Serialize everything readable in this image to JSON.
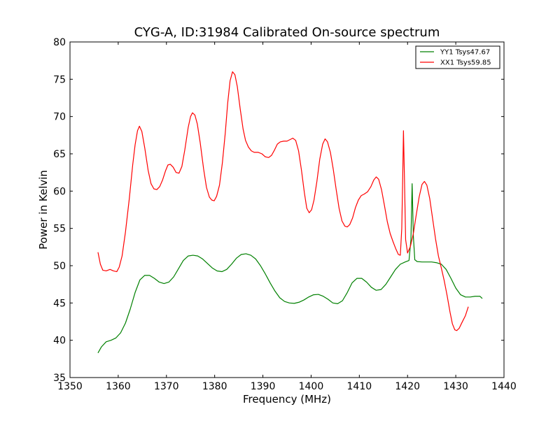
{
  "chart_data": {
    "type": "line",
    "title": "CYG-A, ID:31984 Calibrated On-source spectrum",
    "xlabel": "Frequency (MHz)",
    "ylabel": "Power in Kelvin",
    "xlim": [
      1350,
      1440
    ],
    "ylim": [
      35,
      80
    ],
    "x_ticks": [
      1350,
      1360,
      1370,
      1380,
      1390,
      1400,
      1410,
      1420,
      1430,
      1440
    ],
    "y_ticks": [
      35,
      40,
      45,
      50,
      55,
      60,
      65,
      70,
      75,
      80
    ],
    "grid": false,
    "legend": "top-right",
    "series": [
      {
        "name": "YY1 Tsys47.67",
        "color": "#008000",
        "points": [
          [
            1355.8,
            38.3
          ],
          [
            1356.5,
            39.1
          ],
          [
            1357.5,
            39.8
          ],
          [
            1358.5,
            40.0
          ],
          [
            1359.5,
            40.3
          ],
          [
            1360.5,
            41.0
          ],
          [
            1361.5,
            42.3
          ],
          [
            1362.5,
            44.2
          ],
          [
            1363.5,
            46.4
          ],
          [
            1364.5,
            48.1
          ],
          [
            1365.5,
            48.7
          ],
          [
            1366.5,
            48.7
          ],
          [
            1367.5,
            48.3
          ],
          [
            1368.5,
            47.8
          ],
          [
            1369.5,
            47.6
          ],
          [
            1370.5,
            47.8
          ],
          [
            1371.5,
            48.5
          ],
          [
            1372.5,
            49.6
          ],
          [
            1373.5,
            50.7
          ],
          [
            1374.5,
            51.3
          ],
          [
            1375.5,
            51.4
          ],
          [
            1376.5,
            51.3
          ],
          [
            1377.5,
            50.9
          ],
          [
            1378.5,
            50.3
          ],
          [
            1379.5,
            49.7
          ],
          [
            1380.5,
            49.3
          ],
          [
            1381.5,
            49.2
          ],
          [
            1382.5,
            49.5
          ],
          [
            1383.5,
            50.2
          ],
          [
            1384.5,
            51.0
          ],
          [
            1385.5,
            51.5
          ],
          [
            1386.5,
            51.6
          ],
          [
            1387.5,
            51.4
          ],
          [
            1388.5,
            50.9
          ],
          [
            1389.5,
            50.0
          ],
          [
            1390.5,
            48.9
          ],
          [
            1391.5,
            47.7
          ],
          [
            1392.5,
            46.6
          ],
          [
            1393.5,
            45.7
          ],
          [
            1394.5,
            45.2
          ],
          [
            1395.5,
            45.0
          ],
          [
            1396.5,
            44.95
          ],
          [
            1397.5,
            45.1
          ],
          [
            1398.5,
            45.4
          ],
          [
            1399.5,
            45.8
          ],
          [
            1400.5,
            46.1
          ],
          [
            1401.5,
            46.15
          ],
          [
            1402.5,
            45.9
          ],
          [
            1403.5,
            45.5
          ],
          [
            1404.5,
            45.0
          ],
          [
            1405.5,
            44.9
          ],
          [
            1406.5,
            45.3
          ],
          [
            1407.5,
            46.4
          ],
          [
            1408.5,
            47.7
          ],
          [
            1409.5,
            48.3
          ],
          [
            1410.5,
            48.3
          ],
          [
            1411.5,
            47.8
          ],
          [
            1412.5,
            47.1
          ],
          [
            1413.5,
            46.7
          ],
          [
            1414.5,
            46.8
          ],
          [
            1415.5,
            47.5
          ],
          [
            1416.5,
            48.5
          ],
          [
            1417.5,
            49.5
          ],
          [
            1418.5,
            50.2
          ],
          [
            1419.5,
            50.5
          ],
          [
            1420.3,
            50.7
          ],
          [
            1420.7,
            53.5
          ],
          [
            1420.95,
            61.0
          ],
          [
            1421.2,
            54.0
          ],
          [
            1421.5,
            50.8
          ],
          [
            1422.0,
            50.55
          ],
          [
            1423.0,
            50.5
          ],
          [
            1424.0,
            50.5
          ],
          [
            1425.0,
            50.5
          ],
          [
            1426.0,
            50.4
          ],
          [
            1427.0,
            50.2
          ],
          [
            1428.0,
            49.5
          ],
          [
            1429.0,
            48.3
          ],
          [
            1430.0,
            47.0
          ],
          [
            1431.0,
            46.1
          ],
          [
            1432.0,
            45.8
          ],
          [
            1433.0,
            45.8
          ],
          [
            1434.0,
            45.9
          ],
          [
            1435.0,
            45.9
          ],
          [
            1435.5,
            45.6
          ]
        ]
      },
      {
        "name": "XX1 Tsys59.85",
        "color": "#ff0000",
        "points": [
          [
            1355.8,
            51.8
          ],
          [
            1356.3,
            50.2
          ],
          [
            1356.8,
            49.4
          ],
          [
            1357.5,
            49.3
          ],
          [
            1358.3,
            49.5
          ],
          [
            1359.0,
            49.3
          ],
          [
            1359.7,
            49.2
          ],
          [
            1360.2,
            49.8
          ],
          [
            1360.8,
            51.3
          ],
          [
            1361.5,
            54.5
          ],
          [
            1362.3,
            59.0
          ],
          [
            1363.0,
            63.5
          ],
          [
            1363.5,
            66.2
          ],
          [
            1364.0,
            68.1
          ],
          [
            1364.4,
            68.7
          ],
          [
            1364.9,
            68.0
          ],
          [
            1365.5,
            65.8
          ],
          [
            1366.2,
            62.8
          ],
          [
            1366.8,
            61.0
          ],
          [
            1367.4,
            60.3
          ],
          [
            1368.0,
            60.2
          ],
          [
            1368.6,
            60.6
          ],
          [
            1369.2,
            61.5
          ],
          [
            1369.8,
            62.7
          ],
          [
            1370.3,
            63.5
          ],
          [
            1370.8,
            63.6
          ],
          [
            1371.4,
            63.2
          ],
          [
            1372.0,
            62.5
          ],
          [
            1372.6,
            62.4
          ],
          [
            1373.2,
            63.3
          ],
          [
            1373.8,
            65.5
          ],
          [
            1374.5,
            68.5
          ],
          [
            1375.0,
            70.0
          ],
          [
            1375.4,
            70.5
          ],
          [
            1375.9,
            70.2
          ],
          [
            1376.4,
            69.0
          ],
          [
            1377.0,
            66.5
          ],
          [
            1377.7,
            63.0
          ],
          [
            1378.3,
            60.5
          ],
          [
            1378.9,
            59.2
          ],
          [
            1379.4,
            58.8
          ],
          [
            1379.9,
            58.7
          ],
          [
            1380.4,
            59.3
          ],
          [
            1381.0,
            60.8
          ],
          [
            1381.6,
            63.8
          ],
          [
            1382.2,
            67.8
          ],
          [
            1382.7,
            71.8
          ],
          [
            1383.2,
            74.8
          ],
          [
            1383.7,
            76.0
          ],
          [
            1384.2,
            75.6
          ],
          [
            1384.7,
            74.0
          ],
          [
            1385.3,
            71.0
          ],
          [
            1385.9,
            68.3
          ],
          [
            1386.4,
            66.8
          ],
          [
            1387.0,
            65.9
          ],
          [
            1387.6,
            65.4
          ],
          [
            1388.2,
            65.2
          ],
          [
            1389.0,
            65.2
          ],
          [
            1389.8,
            65.0
          ],
          [
            1390.5,
            64.6
          ],
          [
            1391.2,
            64.5
          ],
          [
            1391.8,
            64.8
          ],
          [
            1392.4,
            65.5
          ],
          [
            1393.0,
            66.3
          ],
          [
            1393.6,
            66.6
          ],
          [
            1394.3,
            66.7
          ],
          [
            1395.0,
            66.7
          ],
          [
            1395.6,
            66.9
          ],
          [
            1396.2,
            67.1
          ],
          [
            1396.8,
            66.8
          ],
          [
            1397.4,
            65.4
          ],
          [
            1398.0,
            62.8
          ],
          [
            1398.6,
            59.8
          ],
          [
            1399.1,
            57.7
          ],
          [
            1399.6,
            57.1
          ],
          [
            1400.1,
            57.5
          ],
          [
            1400.6,
            58.8
          ],
          [
            1401.2,
            61.3
          ],
          [
            1401.8,
            64.3
          ],
          [
            1402.4,
            66.3
          ],
          [
            1402.9,
            67.0
          ],
          [
            1403.4,
            66.6
          ],
          [
            1404.0,
            65.2
          ],
          [
            1404.6,
            62.9
          ],
          [
            1405.2,
            60.2
          ],
          [
            1405.8,
            57.7
          ],
          [
            1406.4,
            56.0
          ],
          [
            1407.0,
            55.3
          ],
          [
            1407.5,
            55.2
          ],
          [
            1408.0,
            55.5
          ],
          [
            1408.6,
            56.4
          ],
          [
            1409.2,
            57.8
          ],
          [
            1409.8,
            58.8
          ],
          [
            1410.4,
            59.4
          ],
          [
            1411.0,
            59.6
          ],
          [
            1411.7,
            59.9
          ],
          [
            1412.4,
            60.6
          ],
          [
            1413.0,
            61.5
          ],
          [
            1413.5,
            61.9
          ],
          [
            1414.0,
            61.6
          ],
          [
            1414.6,
            60.2
          ],
          [
            1415.2,
            58.1
          ],
          [
            1415.8,
            55.9
          ],
          [
            1416.4,
            54.3
          ],
          [
            1417.0,
            53.2
          ],
          [
            1417.6,
            52.2
          ],
          [
            1418.1,
            51.5
          ],
          [
            1418.5,
            51.4
          ],
          [
            1418.8,
            55.0
          ],
          [
            1419.0,
            62.0
          ],
          [
            1419.15,
            68.1
          ],
          [
            1419.35,
            62.0
          ],
          [
            1419.6,
            53.5
          ],
          [
            1420.0,
            51.7
          ],
          [
            1420.6,
            52.6
          ],
          [
            1421.2,
            54.3
          ],
          [
            1421.8,
            56.8
          ],
          [
            1422.4,
            59.2
          ],
          [
            1423.0,
            60.9
          ],
          [
            1423.5,
            61.3
          ],
          [
            1424.0,
            60.8
          ],
          [
            1424.6,
            59.0
          ],
          [
            1425.2,
            56.3
          ],
          [
            1425.8,
            53.6
          ],
          [
            1426.4,
            51.3
          ],
          [
            1427.0,
            49.7
          ],
          [
            1427.6,
            48.0
          ],
          [
            1428.2,
            46.0
          ],
          [
            1428.8,
            43.8
          ],
          [
            1429.3,
            42.2
          ],
          [
            1429.8,
            41.4
          ],
          [
            1430.2,
            41.3
          ],
          [
            1430.7,
            41.6
          ],
          [
            1431.3,
            42.4
          ],
          [
            1432.0,
            43.3
          ],
          [
            1432.6,
            44.5
          ]
        ]
      }
    ]
  }
}
